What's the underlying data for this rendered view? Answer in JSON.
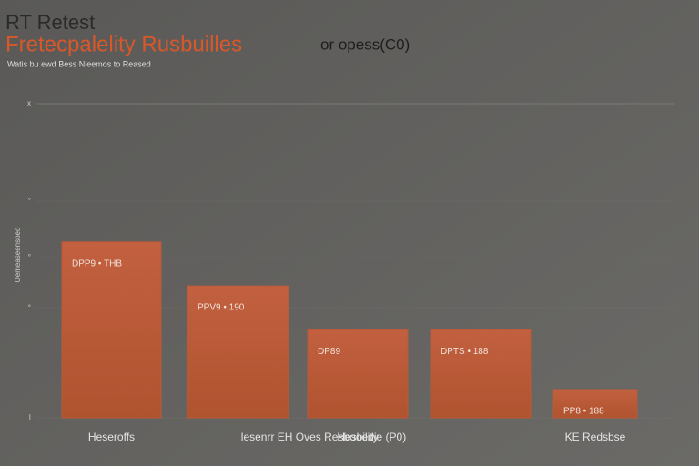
{
  "chart_data": {
    "type": "bar",
    "title": "RT Retest",
    "subtitle_main": "Fretecpalelity Rusbuilles",
    "subtitle_suffix": "or opess(C0)",
    "caption": "Watis bu ewd Bess Nieemos to Reased",
    "ylabel": "Oemeaseensoeo",
    "categories": [
      "Heseroffs",
      "lesenrr EH Oves Resbooedie (P0)",
      "Hesbility",
      "",
      "KE Redsbse"
    ],
    "values": [
      56,
      42,
      28,
      28,
      9
    ],
    "value_labels": [
      "DPP9 •   THB",
      "PPV9 •   190",
      "DP89",
      "DPTS •   188",
      "PP8 •   188"
    ],
    "color": "#b9593a",
    "ylim": [
      0,
      100
    ],
    "yticks": [
      {
        "value": 0,
        "label": "I"
      },
      {
        "value": 35,
        "label": "°"
      },
      {
        "value": 51,
        "label": "°"
      },
      {
        "value": 69,
        "label": "°"
      },
      {
        "value": 100,
        "label": "x"
      }
    ],
    "grid": true
  }
}
